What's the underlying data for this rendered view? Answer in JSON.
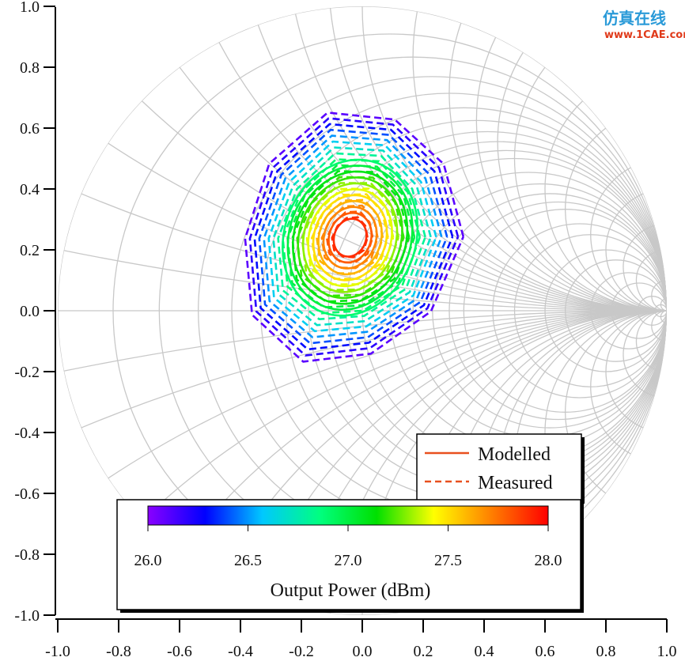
{
  "chart_data": {
    "type": "contour",
    "subtype": "smith-chart-load-pull",
    "xlim": [
      -1.0,
      1.0
    ],
    "ylim": [
      -1.0,
      1.0
    ],
    "x_ticks": [
      "-1.0",
      "-0.8",
      "-0.6",
      "-0.4",
      "-0.2",
      "0.0",
      "0.2",
      "0.4",
      "0.6",
      "0.8",
      "1.0"
    ],
    "y_ticks": [
      "1.0",
      "0.8",
      "0.6",
      "0.4",
      "0.2",
      "0.0",
      "-0.2",
      "-0.4",
      "-0.6",
      "-0.8",
      "-1.0"
    ],
    "grid": true,
    "smith_grid": {
      "resistance_circles": [
        0,
        0.1,
        0.2,
        0.3,
        0.4,
        0.5,
        0.6,
        0.7,
        0.8,
        0.9,
        1,
        1.2,
        1.4,
        1.6,
        1.8,
        2,
        2.5,
        3,
        4,
        5,
        7,
        10,
        20,
        50
      ],
      "reactance_arcs": [
        0.1,
        0.2,
        0.3,
        0.4,
        0.5,
        0.6,
        0.7,
        0.8,
        0.9,
        1,
        1.2,
        1.4,
        1.6,
        1.8,
        2,
        2.5,
        3,
        4,
        5,
        7,
        10,
        20,
        50
      ],
      "color": "#c8c8c8"
    },
    "contours": {
      "optimum_gamma": [
        -0.06,
        0.22
      ],
      "modelled_levels_dBm": [
        26.9,
        27.0,
        27.1,
        27.2,
        27.3,
        27.4,
        27.5,
        27.6,
        27.7,
        27.8,
        27.9
      ],
      "measured_levels_dBm": [
        26.1,
        26.2,
        26.3,
        26.4,
        26.5,
        26.6,
        26.7,
        26.8,
        26.9,
        27.0,
        27.1,
        27.2,
        27.3,
        27.4,
        27.5,
        27.6,
        27.7,
        27.8,
        27.9
      ]
    },
    "legend": {
      "placement": "bottom-right",
      "entries": [
        {
          "label": "Modelled",
          "style": "solid",
          "color": "#e8501e"
        },
        {
          "label": "Measured",
          "style": "dashed",
          "color": "#e8501e"
        }
      ]
    },
    "colorbar": {
      "range": [
        26.0,
        28.0
      ],
      "ticks": [
        "26.0",
        "26.5",
        "27.0",
        "27.5",
        "28.0"
      ],
      "label": "Output Power (dBm)",
      "colormap": [
        "#8a00ff",
        "#0000ff",
        "#00c8ff",
        "#00ff80",
        "#00e000",
        "#ffff00",
        "#ff8000",
        "#ff0000"
      ]
    }
  },
  "watermark": {
    "line1": "仿真在线",
    "line2": "www.1CAE.com"
  }
}
